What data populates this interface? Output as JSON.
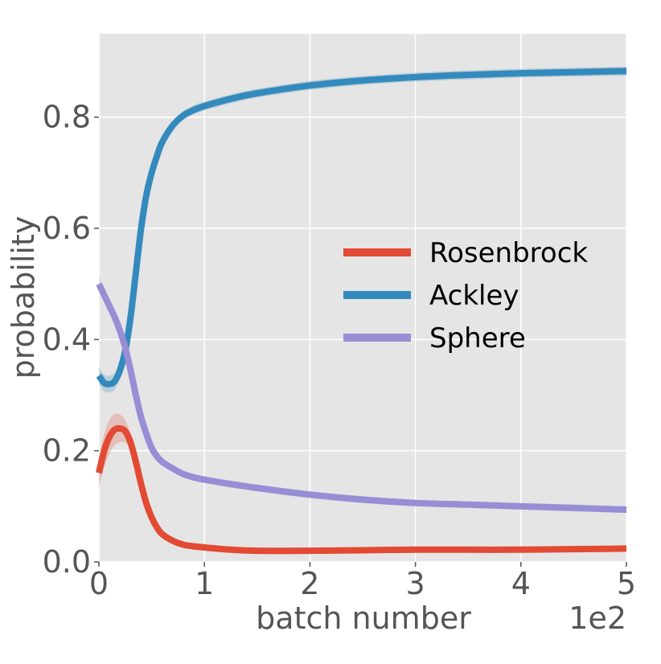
{
  "chart_data": {
    "type": "line",
    "title": "",
    "xlabel": "batch number",
    "ylabel": "probability",
    "x_scale_label": "1e2",
    "xlim": [
      0,
      5
    ],
    "ylim": [
      0,
      0.95
    ],
    "xticks": [
      0,
      1,
      2,
      3,
      4,
      5
    ],
    "xtick_labels": [
      "0",
      "1",
      "2",
      "3",
      "4",
      "5"
    ],
    "yticks": [
      0.0,
      0.2,
      0.4,
      0.6,
      0.8
    ],
    "ytick_labels": [
      "0.0",
      "0.2",
      "0.4",
      "0.6",
      "0.8"
    ],
    "grid": true,
    "legend_position": "center-right",
    "colors": {
      "background": "#e5e5e5",
      "grid": "#ffffff"
    },
    "series": [
      {
        "name": "Rosenbrock",
        "color": "#e24a33",
        "x": [
          0,
          0.05,
          0.1,
          0.15,
          0.2,
          0.25,
          0.3,
          0.35,
          0.4,
          0.45,
          0.5,
          0.55,
          0.6,
          0.7,
          0.8,
          0.9,
          1.0,
          1.25,
          1.5,
          2.0,
          2.5,
          3.0,
          3.5,
          4.0,
          4.5,
          5.0
        ],
        "y": [
          0.16,
          0.2,
          0.225,
          0.238,
          0.24,
          0.235,
          0.215,
          0.18,
          0.14,
          0.105,
          0.08,
          0.062,
          0.05,
          0.038,
          0.031,
          0.028,
          0.026,
          0.022,
          0.02,
          0.02,
          0.021,
          0.022,
          0.022,
          0.022,
          0.023,
          0.024
        ],
        "band": [
          0.025,
          0.03,
          0.03,
          0.028,
          0.025,
          0.02,
          0.015,
          0.012,
          0.01,
          0.008,
          0.006,
          0.005,
          0.004,
          0.004,
          0.003,
          0.003,
          0.003,
          0.003,
          0.003,
          0.003,
          0.003,
          0.003,
          0.003,
          0.003,
          0.003,
          0.003
        ]
      },
      {
        "name": "Ackley",
        "color": "#348abd",
        "x": [
          0,
          0.05,
          0.1,
          0.15,
          0.2,
          0.25,
          0.3,
          0.35,
          0.4,
          0.45,
          0.5,
          0.55,
          0.6,
          0.7,
          0.8,
          0.9,
          1.0,
          1.25,
          1.5,
          2.0,
          2.5,
          3.0,
          3.5,
          4.0,
          4.5,
          5.0
        ],
        "y": [
          0.335,
          0.322,
          0.32,
          0.325,
          0.345,
          0.38,
          0.44,
          0.52,
          0.6,
          0.66,
          0.7,
          0.73,
          0.755,
          0.785,
          0.803,
          0.813,
          0.82,
          0.833,
          0.843,
          0.857,
          0.866,
          0.872,
          0.876,
          0.879,
          0.881,
          0.883
        ],
        "band": [
          0.015,
          0.015,
          0.015,
          0.015,
          0.014,
          0.013,
          0.012,
          0.012,
          0.011,
          0.01,
          0.01,
          0.009,
          0.009,
          0.008,
          0.008,
          0.008,
          0.008,
          0.008,
          0.008,
          0.008,
          0.008,
          0.008,
          0.008,
          0.008,
          0.008,
          0.008
        ]
      },
      {
        "name": "Sphere",
        "color": "#988ed5",
        "x": [
          0,
          0.05,
          0.1,
          0.15,
          0.2,
          0.25,
          0.3,
          0.35,
          0.4,
          0.45,
          0.5,
          0.55,
          0.6,
          0.7,
          0.8,
          0.9,
          1.0,
          1.25,
          1.5,
          2.0,
          2.5,
          3.0,
          3.5,
          4.0,
          4.5,
          5.0
        ],
        "y": [
          0.5,
          0.48,
          0.46,
          0.44,
          0.415,
          0.385,
          0.345,
          0.3,
          0.26,
          0.23,
          0.205,
          0.19,
          0.18,
          0.168,
          0.158,
          0.152,
          0.148,
          0.14,
          0.133,
          0.121,
          0.112,
          0.106,
          0.103,
          0.1,
          0.097,
          0.094
        ],
        "band": [
          0.012,
          0.012,
          0.011,
          0.011,
          0.01,
          0.01,
          0.009,
          0.009,
          0.008,
          0.008,
          0.007,
          0.007,
          0.007,
          0.006,
          0.006,
          0.006,
          0.006,
          0.006,
          0.006,
          0.006,
          0.006,
          0.006,
          0.006,
          0.006,
          0.006,
          0.006
        ]
      }
    ]
  }
}
